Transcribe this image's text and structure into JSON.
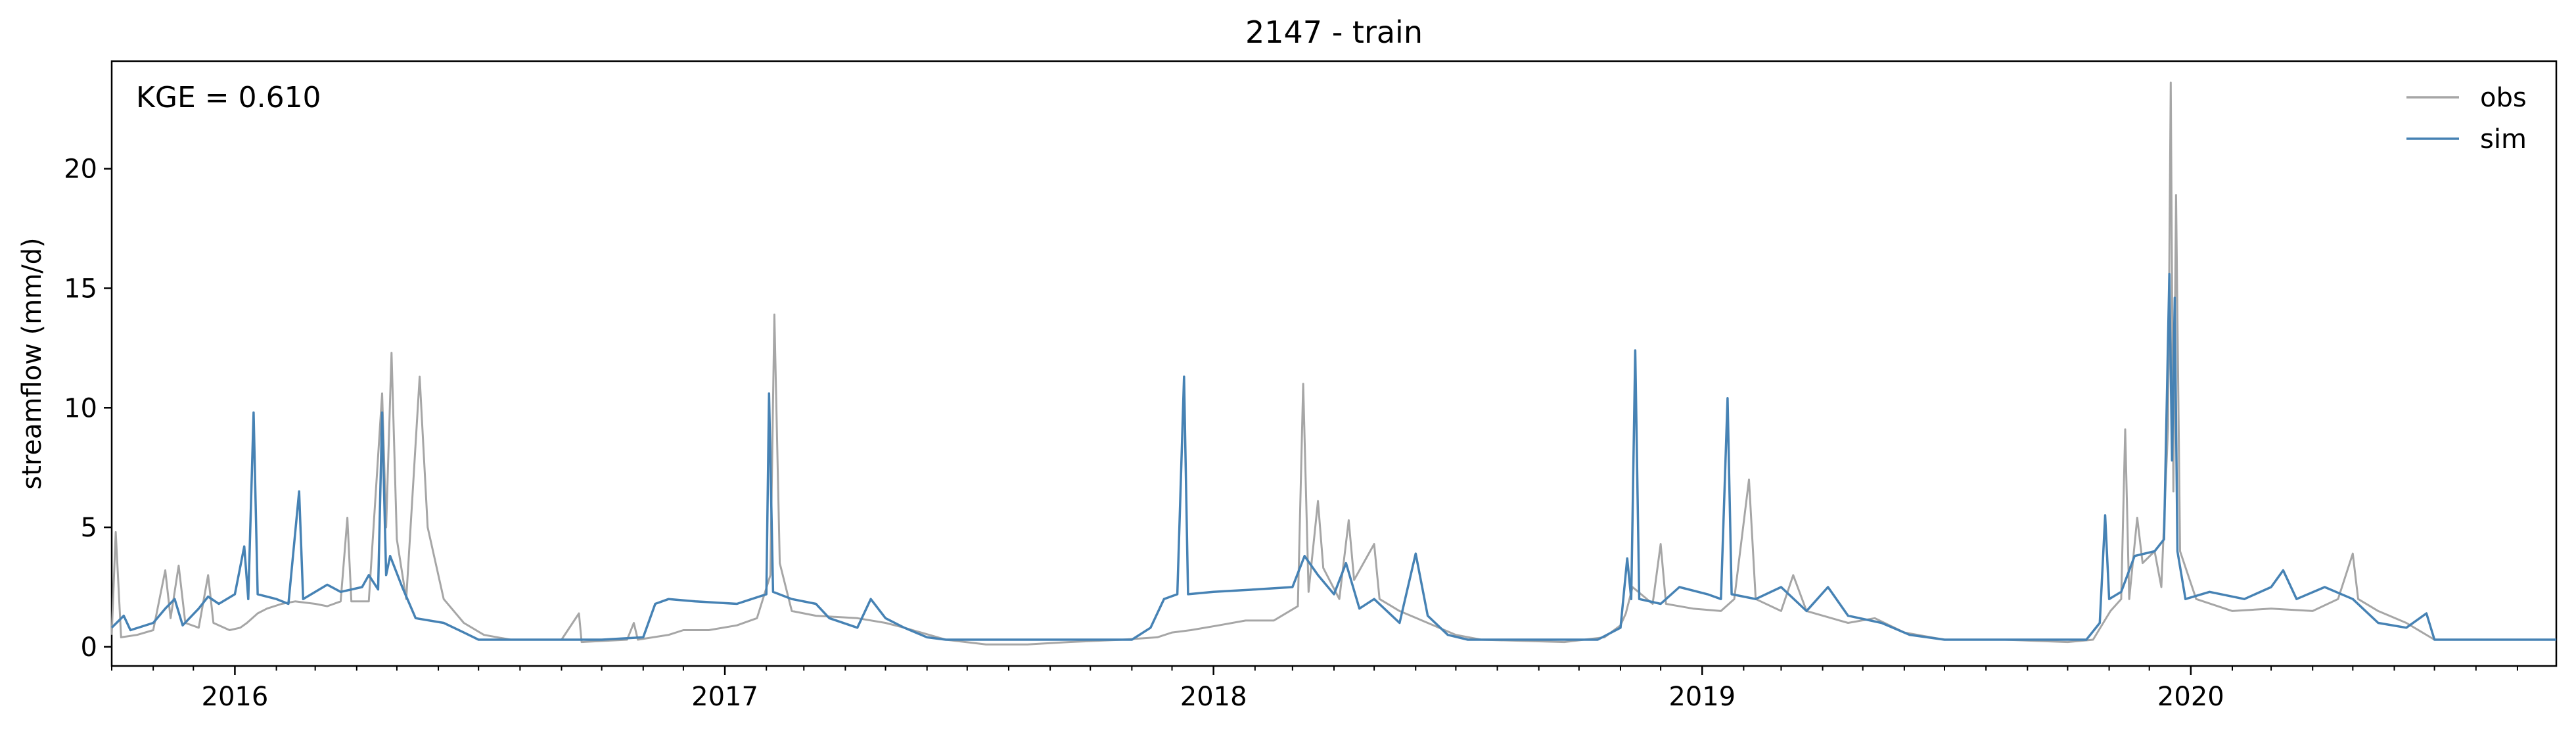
{
  "chart_data": {
    "type": "line",
    "title": "2147 - train",
    "xlabel": "",
    "ylabel": "streamflow (mm/d)",
    "annotation": "KGE = 0.610",
    "xlim": [
      "2015-10-01",
      "2020-09-30"
    ],
    "ylim": [
      -0.8,
      24.5
    ],
    "yticks": [
      0,
      5,
      10,
      15,
      20
    ],
    "xticks": [
      {
        "date": "2016-01-01",
        "label": "2016"
      },
      {
        "date": "2017-01-01",
        "label": "2017"
      },
      {
        "date": "2018-01-01",
        "label": "2018"
      },
      {
        "date": "2019-01-01",
        "label": "2019"
      },
      {
        "date": "2020-01-01",
        "label": "2020"
      }
    ],
    "grid": false,
    "legend_position": "top-right",
    "series": [
      {
        "name": "obs",
        "color": "#a6a6a6",
        "points": [
          [
            "2015-10-01",
            0.5
          ],
          [
            "2015-10-04",
            4.8
          ],
          [
            "2015-10-08",
            0.4
          ],
          [
            "2015-10-20",
            0.5
          ],
          [
            "2015-11-01",
            0.7
          ],
          [
            "2015-11-10",
            3.2
          ],
          [
            "2015-11-14",
            1.2
          ],
          [
            "2015-11-20",
            3.4
          ],
          [
            "2015-11-25",
            1.0
          ],
          [
            "2015-12-05",
            0.8
          ],
          [
            "2015-12-12",
            3.0
          ],
          [
            "2015-12-16",
            1.0
          ],
          [
            "2015-12-28",
            0.7
          ],
          [
            "2016-01-05",
            0.8
          ],
          [
            "2016-01-10",
            1.0
          ],
          [
            "2016-01-18",
            1.4
          ],
          [
            "2016-01-25",
            1.6
          ],
          [
            "2016-02-05",
            1.8
          ],
          [
            "2016-02-15",
            1.9
          ],
          [
            "2016-03-01",
            1.8
          ],
          [
            "2016-03-10",
            1.7
          ],
          [
            "2016-03-20",
            1.9
          ],
          [
            "2016-03-25",
            5.4
          ],
          [
            "2016-03-28",
            1.9
          ],
          [
            "2016-04-10",
            1.9
          ],
          [
            "2016-04-20",
            10.6
          ],
          [
            "2016-04-23",
            5.0
          ],
          [
            "2016-04-27",
            12.3
          ],
          [
            "2016-05-01",
            4.5
          ],
          [
            "2016-05-08",
            2.0
          ],
          [
            "2016-05-18",
            11.3
          ],
          [
            "2016-05-24",
            5.0
          ],
          [
            "2016-06-05",
            2.0
          ],
          [
            "2016-06-20",
            1.0
          ],
          [
            "2016-07-05",
            0.5
          ],
          [
            "2016-07-25",
            0.3
          ],
          [
            "2016-09-01",
            0.3
          ],
          [
            "2016-09-14",
            1.4
          ],
          [
            "2016-09-16",
            0.2
          ],
          [
            "2016-10-20",
            0.3
          ],
          [
            "2016-10-25",
            1.0
          ],
          [
            "2016-10-28",
            0.3
          ],
          [
            "2016-11-20",
            0.5
          ],
          [
            "2016-12-01",
            0.7
          ],
          [
            "2016-12-20",
            0.7
          ],
          [
            "2017-01-10",
            0.9
          ],
          [
            "2017-01-25",
            1.2
          ],
          [
            "2017-02-04",
            3.0
          ],
          [
            "2017-02-07",
            13.9
          ],
          [
            "2017-02-11",
            3.5
          ],
          [
            "2017-02-20",
            1.5
          ],
          [
            "2017-03-10",
            1.3
          ],
          [
            "2017-04-10",
            1.2
          ],
          [
            "2017-05-01",
            1.0
          ],
          [
            "2017-05-15",
            0.8
          ],
          [
            "2017-06-15",
            0.3
          ],
          [
            "2017-07-15",
            0.1
          ],
          [
            "2017-08-15",
            0.1
          ],
          [
            "2017-09-15",
            0.2
          ],
          [
            "2017-10-25",
            0.3
          ],
          [
            "2017-11-20",
            0.4
          ],
          [
            "2017-12-01",
            0.6
          ],
          [
            "2017-12-15",
            0.7
          ],
          [
            "2018-01-05",
            0.9
          ],
          [
            "2018-01-25",
            1.1
          ],
          [
            "2018-02-15",
            1.1
          ],
          [
            "2018-03-05",
            1.7
          ],
          [
            "2018-03-09",
            11.0
          ],
          [
            "2018-03-13",
            2.3
          ],
          [
            "2018-03-20",
            6.1
          ],
          [
            "2018-03-24",
            3.3
          ],
          [
            "2018-04-05",
            2.0
          ],
          [
            "2018-04-12",
            5.3
          ],
          [
            "2018-04-16",
            2.8
          ],
          [
            "2018-05-01",
            4.3
          ],
          [
            "2018-05-05",
            2.0
          ],
          [
            "2018-05-20",
            1.5
          ],
          [
            "2018-06-10",
            1.0
          ],
          [
            "2018-07-01",
            0.5
          ],
          [
            "2018-07-20",
            0.3
          ],
          [
            "2018-09-20",
            0.2
          ],
          [
            "2018-10-20",
            0.4
          ],
          [
            "2018-11-01",
            0.9
          ],
          [
            "2018-11-05",
            1.4
          ],
          [
            "2018-11-10",
            2.5
          ],
          [
            "2018-11-25",
            1.8
          ],
          [
            "2018-12-01",
            4.3
          ],
          [
            "2018-12-05",
            1.8
          ],
          [
            "2018-12-25",
            1.6
          ],
          [
            "2019-01-15",
            1.5
          ],
          [
            "2019-01-25",
            2.0
          ],
          [
            "2019-02-05",
            7.0
          ],
          [
            "2019-02-10",
            2.0
          ],
          [
            "2019-03-01",
            1.5
          ],
          [
            "2019-03-10",
            3.0
          ],
          [
            "2019-03-20",
            1.5
          ],
          [
            "2019-04-20",
            1.0
          ],
          [
            "2019-05-10",
            1.2
          ],
          [
            "2019-06-01",
            0.6
          ],
          [
            "2019-07-01",
            0.3
          ],
          [
            "2019-08-15",
            0.3
          ],
          [
            "2019-10-01",
            0.2
          ],
          [
            "2019-10-20",
            0.3
          ],
          [
            "2019-11-02",
            1.5
          ],
          [
            "2019-11-10",
            2.0
          ],
          [
            "2019-11-13",
            9.1
          ],
          [
            "2019-11-16",
            2.0
          ],
          [
            "2019-11-22",
            5.4
          ],
          [
            "2019-11-26",
            3.5
          ],
          [
            "2019-12-05",
            4.0
          ],
          [
            "2019-12-10",
            2.5
          ],
          [
            "2019-12-15",
            9.2
          ],
          [
            "2019-12-17",
            23.6
          ],
          [
            "2019-12-19",
            6.5
          ],
          [
            "2019-12-21",
            18.9
          ],
          [
            "2019-12-24",
            4.0
          ],
          [
            "2020-01-05",
            2.0
          ],
          [
            "2020-02-01",
            1.5
          ],
          [
            "2020-03-01",
            1.6
          ],
          [
            "2020-04-01",
            1.5
          ],
          [
            "2020-04-20",
            2.0
          ],
          [
            "2020-05-01",
            3.9
          ],
          [
            "2020-05-05",
            2.0
          ],
          [
            "2020-05-20",
            1.5
          ],
          [
            "2020-06-10",
            1.0
          ],
          [
            "2020-07-01",
            0.3
          ],
          [
            "2020-09-30",
            0.3
          ]
        ]
      },
      {
        "name": "sim",
        "color": "#4682b4",
        "points": [
          [
            "2015-10-01",
            0.8
          ],
          [
            "2015-10-10",
            1.3
          ],
          [
            "2015-10-15",
            0.7
          ],
          [
            "2015-11-01",
            1.0
          ],
          [
            "2015-11-10",
            1.6
          ],
          [
            "2015-11-17",
            2.0
          ],
          [
            "2015-11-23",
            0.9
          ],
          [
            "2015-12-05",
            1.6
          ],
          [
            "2015-12-12",
            2.1
          ],
          [
            "2015-12-20",
            1.8
          ],
          [
            "2016-01-01",
            2.2
          ],
          [
            "2016-01-08",
            4.2
          ],
          [
            "2016-01-11",
            2.0
          ],
          [
            "2016-01-15",
            9.8
          ],
          [
            "2016-01-18",
            2.2
          ],
          [
            "2016-02-01",
            2.0
          ],
          [
            "2016-02-10",
            1.8
          ],
          [
            "2016-02-18",
            6.5
          ],
          [
            "2016-02-21",
            2.0
          ],
          [
            "2016-03-10",
            2.6
          ],
          [
            "2016-03-20",
            2.3
          ],
          [
            "2016-04-05",
            2.5
          ],
          [
            "2016-04-10",
            3.0
          ],
          [
            "2016-04-17",
            2.4
          ],
          [
            "2016-04-20",
            9.8
          ],
          [
            "2016-04-23",
            3.0
          ],
          [
            "2016-04-26",
            3.8
          ],
          [
            "2016-05-05",
            2.5
          ],
          [
            "2016-05-15",
            1.2
          ],
          [
            "2016-06-05",
            1.0
          ],
          [
            "2016-06-20",
            0.6
          ],
          [
            "2016-07-01",
            0.3
          ],
          [
            "2016-10-01",
            0.3
          ],
          [
            "2016-11-01",
            0.4
          ],
          [
            "2016-11-10",
            1.8
          ],
          [
            "2016-11-20",
            2.0
          ],
          [
            "2016-12-10",
            1.9
          ],
          [
            "2017-01-10",
            1.8
          ],
          [
            "2017-02-01",
            2.2
          ],
          [
            "2017-02-03",
            10.6
          ],
          [
            "2017-02-06",
            2.3
          ],
          [
            "2017-02-20",
            2.0
          ],
          [
            "2017-03-10",
            1.8
          ],
          [
            "2017-03-20",
            1.2
          ],
          [
            "2017-04-10",
            0.8
          ],
          [
            "2017-04-20",
            2.0
          ],
          [
            "2017-05-01",
            1.2
          ],
          [
            "2017-05-15",
            0.8
          ],
          [
            "2017-06-01",
            0.4
          ],
          [
            "2017-06-15",
            0.3
          ],
          [
            "2017-11-01",
            0.3
          ],
          [
            "2017-11-15",
            0.8
          ],
          [
            "2017-11-25",
            2.0
          ],
          [
            "2017-12-05",
            2.2
          ],
          [
            "2017-12-10",
            11.3
          ],
          [
            "2017-12-13",
            2.2
          ],
          [
            "2018-01-01",
            2.3
          ],
          [
            "2018-02-01",
            2.4
          ],
          [
            "2018-03-01",
            2.5
          ],
          [
            "2018-03-10",
            3.8
          ],
          [
            "2018-03-20",
            3.0
          ],
          [
            "2018-04-01",
            2.2
          ],
          [
            "2018-04-10",
            3.5
          ],
          [
            "2018-04-20",
            1.6
          ],
          [
            "2018-05-01",
            2.0
          ],
          [
            "2018-05-20",
            1.0
          ],
          [
            "2018-06-01",
            3.9
          ],
          [
            "2018-06-10",
            1.3
          ],
          [
            "2018-06-25",
            0.5
          ],
          [
            "2018-07-10",
            0.3
          ],
          [
            "2018-10-15",
            0.3
          ],
          [
            "2018-11-01",
            0.8
          ],
          [
            "2018-11-06",
            3.7
          ],
          [
            "2018-11-09",
            2.0
          ],
          [
            "2018-11-12",
            12.4
          ],
          [
            "2018-11-15",
            2.0
          ],
          [
            "2018-12-01",
            1.8
          ],
          [
            "2018-12-15",
            2.5
          ],
          [
            "2019-01-05",
            2.2
          ],
          [
            "2019-01-15",
            2.0
          ],
          [
            "2019-01-20",
            10.4
          ],
          [
            "2019-01-23",
            2.2
          ],
          [
            "2019-02-10",
            2.0
          ],
          [
            "2019-03-01",
            2.5
          ],
          [
            "2019-03-20",
            1.5
          ],
          [
            "2019-04-05",
            2.5
          ],
          [
            "2019-04-20",
            1.3
          ],
          [
            "2019-05-15",
            1.0
          ],
          [
            "2019-06-05",
            0.5
          ],
          [
            "2019-07-01",
            0.3
          ],
          [
            "2019-10-15",
            0.3
          ],
          [
            "2019-10-25",
            1.0
          ],
          [
            "2019-10-29",
            5.5
          ],
          [
            "2019-11-01",
            2.0
          ],
          [
            "2019-11-10",
            2.3
          ],
          [
            "2019-11-20",
            3.8
          ],
          [
            "2019-12-05",
            4.0
          ],
          [
            "2019-12-12",
            4.5
          ],
          [
            "2019-12-16",
            15.6
          ],
          [
            "2019-12-18",
            7.8
          ],
          [
            "2019-12-20",
            14.6
          ],
          [
            "2019-12-22",
            4.0
          ],
          [
            "2019-12-28",
            2.0
          ],
          [
            "2020-01-15",
            2.3
          ],
          [
            "2020-02-10",
            2.0
          ],
          [
            "2020-03-01",
            2.5
          ],
          [
            "2020-03-10",
            3.2
          ],
          [
            "2020-03-20",
            2.0
          ],
          [
            "2020-04-10",
            2.5
          ],
          [
            "2020-05-01",
            2.0
          ],
          [
            "2020-05-20",
            1.0
          ],
          [
            "2020-06-10",
            0.8
          ],
          [
            "2020-06-25",
            1.4
          ],
          [
            "2020-07-01",
            0.3
          ],
          [
            "2020-09-30",
            0.3
          ]
        ]
      }
    ]
  }
}
